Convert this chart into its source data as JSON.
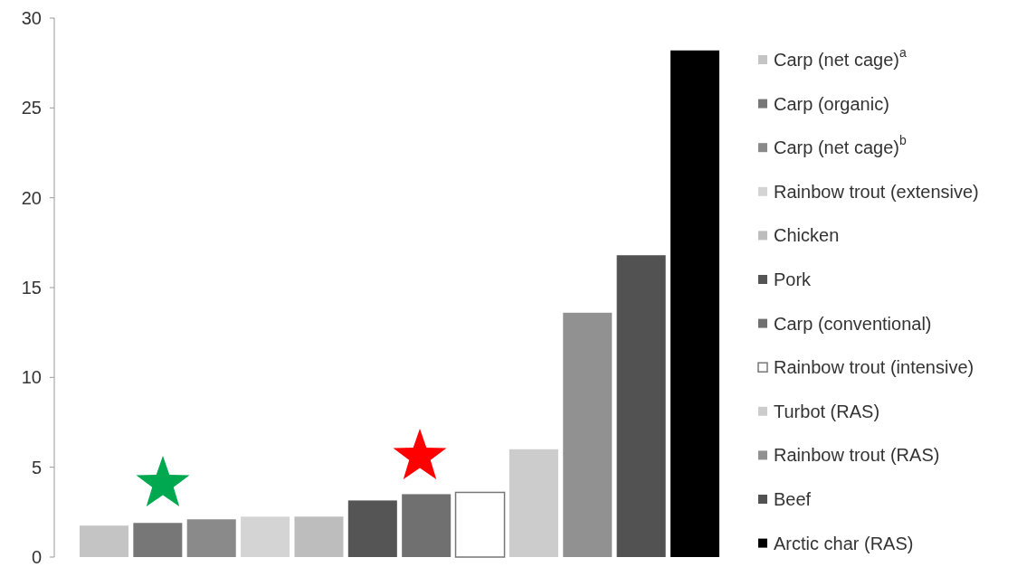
{
  "chart_data": {
    "type": "bar",
    "categories": [
      null,
      null,
      null,
      null,
      null,
      null,
      null,
      null,
      null,
      null,
      null,
      null
    ],
    "stacked": true,
    "series": [
      {
        "name": "Carp (net cage)$^{a}$",
        "color": "#c4c4c4",
        "values": [
          1.75,
          0,
          0,
          0,
          0,
          0,
          0,
          0,
          0,
          0,
          0,
          0
        ]
      },
      {
        "name": "Carp (organic)",
        "color": "#777777",
        "values": [
          0,
          1.9,
          0,
          0,
          0,
          0,
          0,
          0,
          0,
          0,
          0,
          0
        ]
      },
      {
        "name": "Carp (net cage)$^{b}$",
        "color": "#8a8a8a",
        "values": [
          0,
          0,
          2.1,
          0,
          0,
          0,
          0,
          0,
          0,
          0,
          0,
          0
        ]
      },
      {
        "name": "Rainbow trout (extensive)",
        "color": "#d4d4d4",
        "values": [
          0,
          0,
          0,
          2.25,
          0,
          0,
          0,
          0,
          0,
          0,
          0,
          0
        ]
      },
      {
        "name": "Chicken",
        "color": "#bdbdbd",
        "values": [
          0,
          0,
          0,
          0,
          2.25,
          0,
          0,
          0,
          0,
          0,
          0,
          0
        ]
      },
      {
        "name": "Pork",
        "color": "#555555",
        "values": [
          0,
          0,
          0,
          0,
          0,
          3.15,
          0,
          0,
          0,
          0,
          0,
          0
        ]
      },
      {
        "name": "Carp (conventional)",
        "color": "#707070",
        "values": [
          0,
          0,
          0,
          0,
          0,
          0,
          3.5,
          0,
          0,
          0,
          0,
          0
        ]
      },
      {
        "name": "Rainbow trout (intensive)",
        "color": "#ffffff",
        "values": [
          0,
          0,
          0,
          0,
          0,
          0,
          0,
          3.6,
          0,
          0,
          0,
          0
        ]
      },
      {
        "name": "Turbot (RAS)",
        "color": "#cccccc",
        "values": [
          0,
          0,
          0,
          0,
          0,
          0,
          0,
          0,
          6.0,
          0,
          0,
          0
        ]
      },
      {
        "name": "Rainbow trout (RAS)",
        "color": "#919191",
        "values": [
          0,
          0,
          0,
          0,
          0,
          0,
          0,
          0,
          0,
          13.6,
          0,
          0
        ]
      },
      {
        "name": "Beef",
        "color": "#525252",
        "values": [
          0,
          0,
          0,
          0,
          0,
          0,
          0,
          0,
          0,
          0,
          16.8,
          0
        ]
      },
      {
        "name": "Arctic char (RAS)",
        "color": "#000000",
        "values": [
          0,
          0,
          0,
          0,
          0,
          0,
          0,
          0,
          0,
          0,
          0,
          28.2
        ]
      }
    ],
    "ylim": [
      0,
      30
    ],
    "yticks": [
      0,
      5,
      10,
      15,
      20,
      25,
      30
    ],
    "legend": "right",
    "tick_labels": "y"
  }
}
